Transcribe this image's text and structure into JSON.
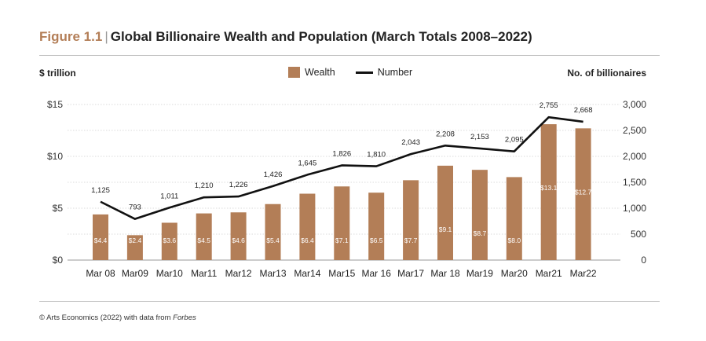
{
  "header": {
    "figure_label": "Figure 1.1",
    "title": "Global Billionaire Wealth and Population (March Totals 2008–2022)"
  },
  "footer": {
    "source_prefix": "© Arts Economics (2022) with data from ",
    "source_italic": "Forbes"
  },
  "chart_data": {
    "type": "bar",
    "categories": [
      "Mar 08",
      "Mar09",
      "Mar10",
      "Mar11",
      "Mar12",
      "Mar13",
      "Mar14",
      "Mar15",
      "Mar 16",
      "Mar17",
      "Mar 18",
      "Mar19",
      "Mar20",
      "Mar21",
      "Mar22"
    ],
    "series": [
      {
        "name": "Wealth",
        "type": "bar",
        "axis": "left",
        "color": "#b37e57",
        "values": [
          4.4,
          2.4,
          3.6,
          4.5,
          4.6,
          5.4,
          6.4,
          7.1,
          6.5,
          7.7,
          9.1,
          8.7,
          8.0,
          13.1,
          12.7
        ],
        "labels": [
          "$4.4",
          "$2.4",
          "$3.6",
          "$4.5",
          "$4.6",
          "$5.4",
          "$6.4",
          "$7.1",
          "$6.5",
          "$7.7",
          "$9.1",
          "$8.7",
          "$8.0",
          "$13.1",
          "$12.7"
        ]
      },
      {
        "name": "Number",
        "type": "line",
        "axis": "right",
        "color": "#111111",
        "values": [
          1125,
          793,
          1011,
          1210,
          1226,
          1426,
          1645,
          1826,
          1810,
          2043,
          2208,
          2153,
          2095,
          2755,
          2668
        ],
        "labels": [
          "1,125",
          "793",
          "1,011",
          "1,210",
          "1,226",
          "1,426",
          "1,645",
          "1,826",
          "1,810",
          "2,043",
          "2,208",
          "2,153",
          "2,095",
          "2,755",
          "2,668"
        ]
      }
    ],
    "y_left": {
      "label": "$ trillion",
      "ylim": [
        0,
        15
      ],
      "ticks": [
        0,
        5,
        10,
        15
      ],
      "tick_labels": [
        "$0",
        "$5",
        "$10",
        "$15"
      ]
    },
    "y_right": {
      "label": "No. of billionaires",
      "ylim": [
        0,
        3000
      ],
      "ticks": [
        0,
        500,
        1000,
        1500,
        2000,
        2500,
        3000
      ],
      "tick_labels": [
        "0",
        "500",
        "1,000",
        "1,500",
        "2,000",
        "2,500",
        "3,000"
      ]
    },
    "grid": true,
    "legend": "top-center"
  }
}
